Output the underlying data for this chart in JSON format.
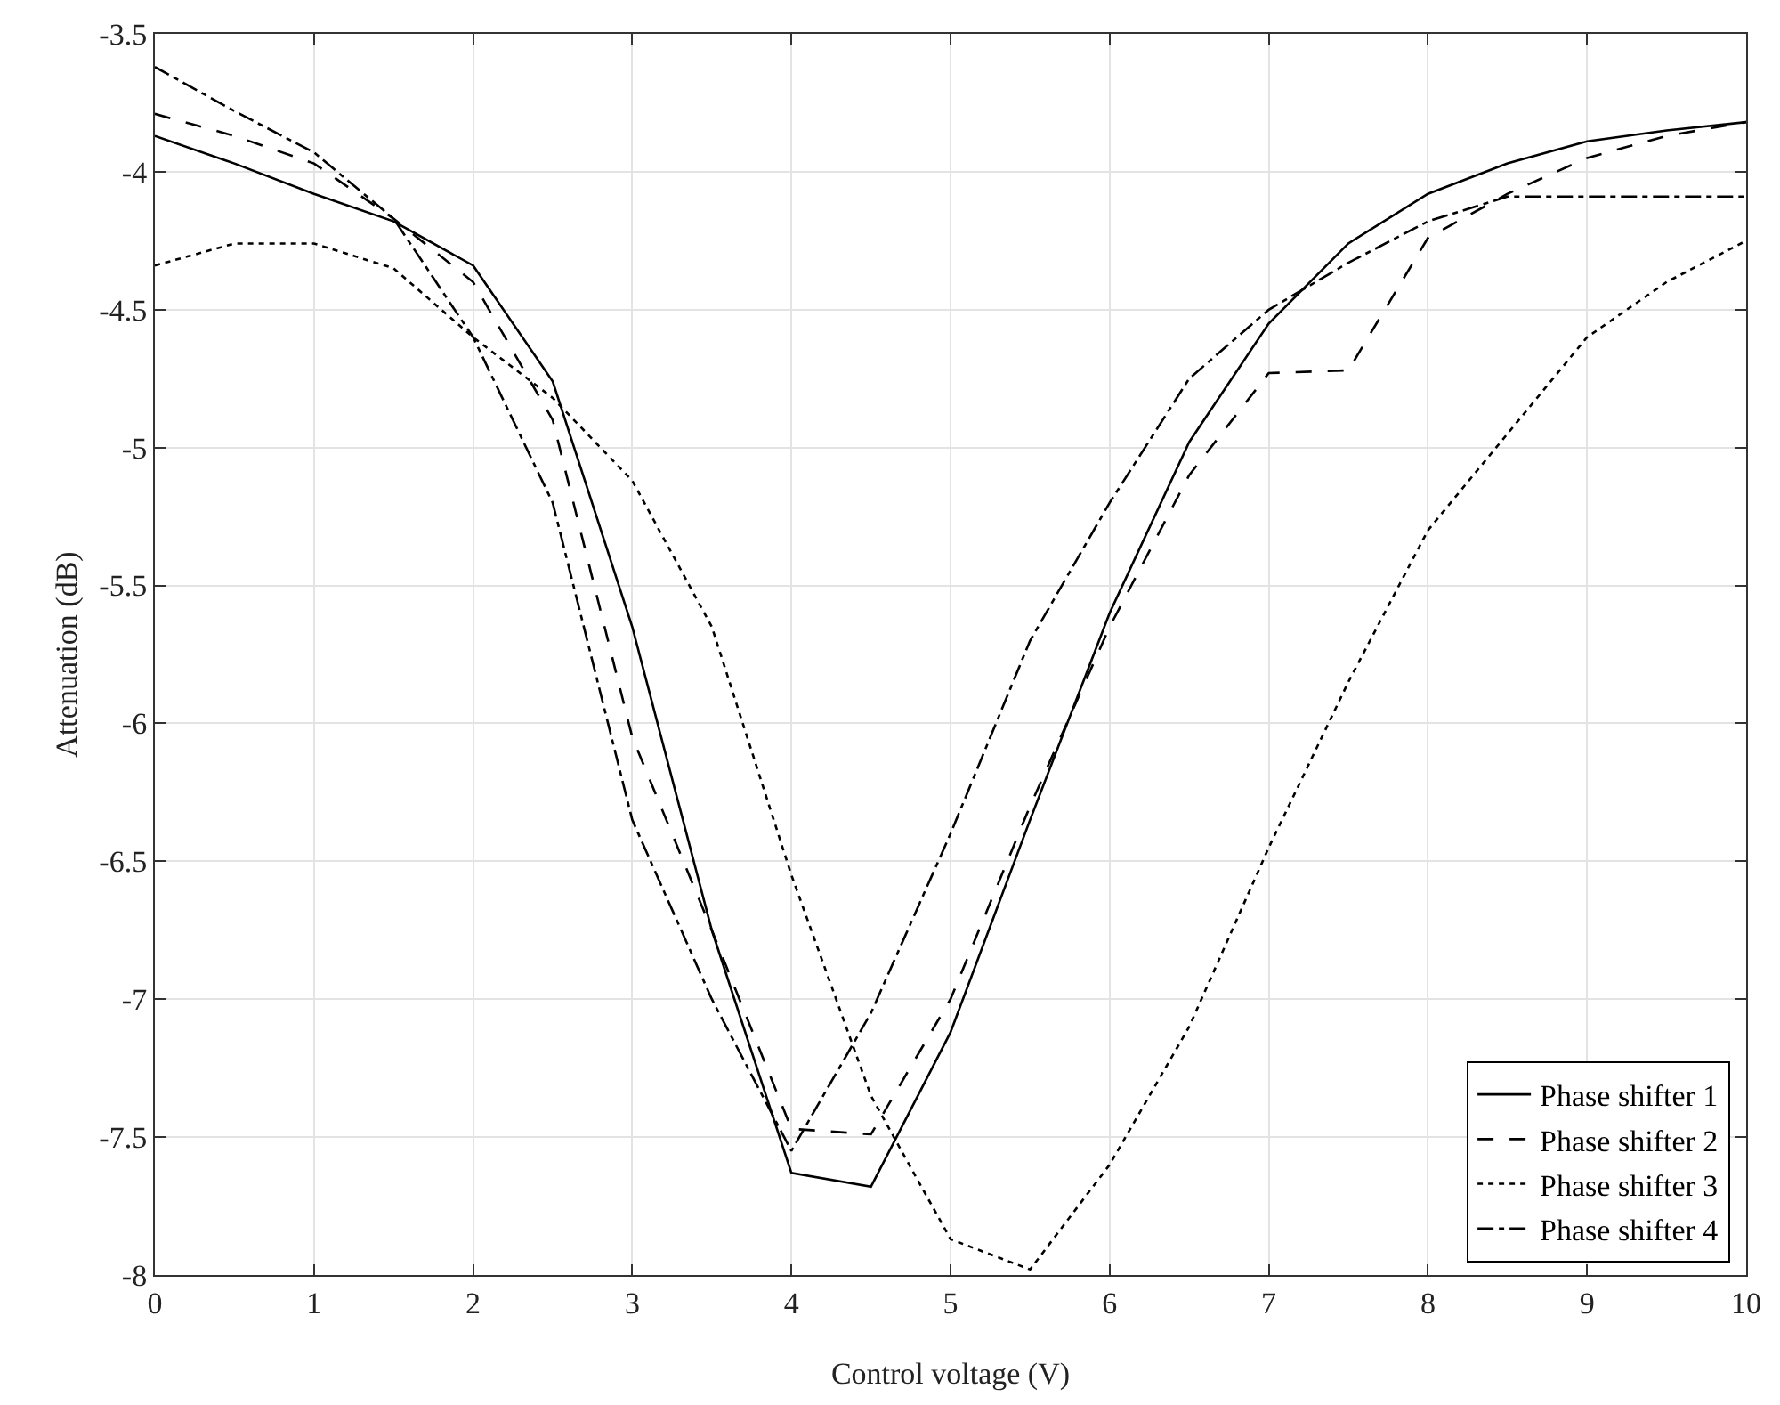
{
  "chart_data": {
    "type": "line",
    "xlabel": "Control voltage (V)",
    "ylabel": "Attenuation (dB)",
    "x": [
      0,
      0.5,
      1,
      1.5,
      2,
      2.5,
      3,
      3.5,
      4,
      4.5,
      5,
      5.5,
      6,
      6.5,
      7,
      7.5,
      8,
      8.5,
      9,
      9.5,
      10
    ],
    "series": [
      {
        "name": "Phase shifter 1",
        "color": "#000000",
        "line_style": "solid",
        "values": [
          -3.87,
          -3.97,
          -4.08,
          -4.18,
          -4.34,
          -4.76,
          -5.65,
          -6.75,
          -7.63,
          -7.68,
          -7.12,
          -6.35,
          -5.6,
          -4.98,
          -4.55,
          -4.26,
          -4.08,
          -3.97,
          -3.89,
          -3.85,
          -3.82
        ]
      },
      {
        "name": "Phase shifter 2",
        "color": "#000000",
        "line_style": "dashed",
        "values": [
          -3.79,
          -3.87,
          -3.97,
          -4.17,
          -4.4,
          -4.9,
          -6.05,
          -6.75,
          -7.47,
          -7.49,
          -7.0,
          -6.3,
          -5.65,
          -5.1,
          -4.73,
          -4.72,
          -4.24,
          -4.08,
          -3.95,
          -3.87,
          -3.82
        ]
      },
      {
        "name": "Phase shifter 3",
        "color": "#000000",
        "line_style": "dotted",
        "values": [
          -4.34,
          -4.26,
          -4.26,
          -4.35,
          -4.6,
          -4.82,
          -5.12,
          -5.65,
          -6.55,
          -7.35,
          -7.87,
          -7.98,
          -7.6,
          -7.1,
          -6.45,
          -5.85,
          -5.3,
          -4.95,
          -4.6,
          -4.4,
          -4.25
        ]
      },
      {
        "name": "Phase shifter 4",
        "color": "#000000",
        "line_style": "dashdot",
        "values": [
          -3.62,
          -3.78,
          -3.93,
          -4.17,
          -4.6,
          -5.2,
          -6.35,
          -7.0,
          -7.55,
          -7.05,
          -6.4,
          -5.7,
          -5.2,
          -4.75,
          -4.5,
          -4.33,
          -4.18,
          -4.09,
          -4.09,
          -4.09,
          -4.09
        ]
      }
    ],
    "xlim": [
      0,
      10
    ],
    "xticks": [
      0,
      1,
      2,
      3,
      4,
      5,
      6,
      7,
      8,
      9,
      10
    ],
    "ylim": [
      -8,
      -3.5
    ],
    "yticks": [
      -8,
      -7.5,
      -7,
      -6.5,
      -6,
      -5.5,
      -5,
      -4.5,
      -4,
      -3.5
    ],
    "grid": true,
    "legend": "bottom right",
    "marker": "none"
  }
}
